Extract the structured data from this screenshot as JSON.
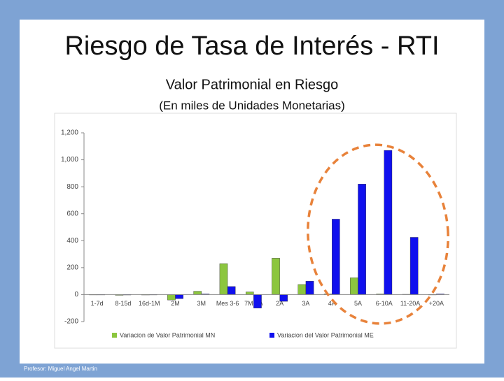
{
  "slide": {
    "title": "Riesgo de Tasa de Interés - RTI",
    "footer": "Profesor: Miguel Angel Martin"
  },
  "chart_data": {
    "type": "bar",
    "title": "Valor Patrimonial en Riesgo",
    "subtitle": "(En miles de Unidades Monetarias)",
    "categories": [
      "1-7d",
      "8-15d",
      "16d-1M",
      "2M",
      "3M",
      "Mes 3-6",
      "7M-1A",
      "2A",
      "3A",
      "4A",
      "5A",
      "6-10A",
      "11-20A",
      "+20A"
    ],
    "series": [
      {
        "name": "Variacion de Valor Patrimonial MN",
        "color": "#8cc63f",
        "values": [
          0,
          -5,
          -3,
          -40,
          25,
          230,
          20,
          270,
          75,
          5,
          125,
          5,
          2,
          0
        ]
      },
      {
        "name": "Variacion del Valor Patrimonial ME",
        "color": "#1010ee",
        "values": [
          -2,
          -3,
          -2,
          -30,
          5,
          60,
          -100,
          -50,
          100,
          560,
          820,
          1070,
          425,
          5
        ]
      }
    ],
    "ylim": [
      -200,
      1200
    ],
    "yticks": [
      -200,
      0,
      200,
      400,
      600,
      800,
      {
        "value": 1000,
        "label": "1,000"
      },
      {
        "value": 1200,
        "label": "1,200"
      }
    ],
    "grid": false,
    "legend": "bottom"
  }
}
